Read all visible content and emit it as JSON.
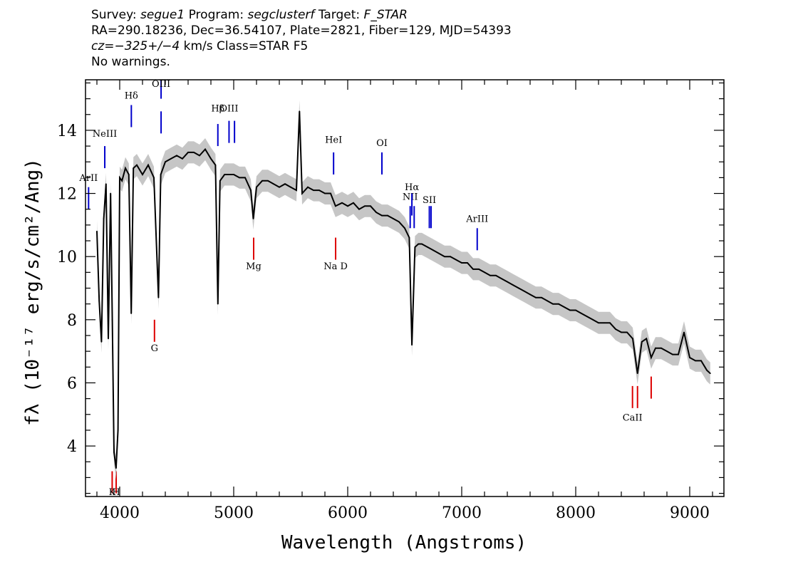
{
  "header": {
    "survey_label": "Survey:",
    "survey": "segue1",
    "program_label": "Program:",
    "program": "segclusterf",
    "target_label": "Target:",
    "target": "F_STAR",
    "line2": "RA=290.18236, Dec=36.54107, Plate=2821, Fiber=129, MJD=54393",
    "cz_label": "cz=",
    "cz_value": "−325+/−4",
    "cz_rest": " km/s Class=STAR F5",
    "warnings": "No warnings."
  },
  "chart_data": {
    "type": "line",
    "title": "",
    "xlabel": "Wavelength (Angstroms)",
    "ylabel": "fλ (10⁻¹⁷ erg/s/cm²/Ang)",
    "xlim": [
      3700,
      9300
    ],
    "ylim": [
      2.4,
      15.6
    ],
    "xticks": [
      4000,
      5000,
      6000,
      7000,
      8000,
      9000
    ],
    "yticks": [
      4,
      6,
      8,
      10,
      12,
      14
    ],
    "grid": false,
    "series": [
      {
        "color": "#000000",
        "error_band_color": "#c0c0c0",
        "x": [
          3800,
          3820,
          3840,
          3860,
          3880,
          3900,
          3920,
          3935,
          3950,
          3968,
          3985,
          4000,
          4020,
          4050,
          4080,
          4101,
          4120,
          4150,
          4200,
          4250,
          4300,
          4340,
          4360,
          4400,
          4450,
          4500,
          4550,
          4600,
          4650,
          4700,
          4750,
          4800,
          4840,
          4861,
          4880,
          4920,
          4950,
          5000,
          5050,
          5100,
          5150,
          5172,
          5200,
          5250,
          5300,
          5350,
          5400,
          5450,
          5500,
          5550,
          5577,
          5600,
          5650,
          5700,
          5750,
          5800,
          5850,
          5893,
          5950,
          6000,
          6050,
          6100,
          6150,
          6200,
          6250,
          6300,
          6350,
          6400,
          6450,
          6500,
          6540,
          6563,
          6590,
          6620,
          6650,
          6700,
          6750,
          6800,
          6850,
          6900,
          6950,
          7000,
          7050,
          7100,
          7150,
          7200,
          7250,
          7300,
          7350,
          7400,
          7450,
          7500,
          7550,
          7600,
          7650,
          7700,
          7750,
          7800,
          7850,
          7900,
          7950,
          8000,
          8050,
          8100,
          8150,
          8200,
          8250,
          8300,
          8350,
          8400,
          8450,
          8500,
          8542,
          8580,
          8620,
          8662,
          8700,
          8750,
          8800,
          8850,
          8900,
          8950,
          9000,
          9050,
          9100,
          9150,
          9180
        ],
        "y": [
          10.8,
          8.6,
          7.3,
          11.2,
          12.3,
          7.4,
          12.0,
          8.0,
          3.8,
          3.3,
          4.5,
          12.5,
          12.4,
          12.8,
          12.6,
          8.2,
          12.8,
          12.9,
          12.6,
          12.9,
          12.5,
          8.7,
          12.6,
          13.0,
          13.1,
          13.2,
          13.1,
          13.3,
          13.3,
          13.2,
          13.4,
          13.1,
          12.9,
          8.5,
          12.4,
          12.6,
          12.6,
          12.6,
          12.5,
          12.5,
          12.1,
          11.2,
          12.2,
          12.4,
          12.4,
          12.3,
          12.2,
          12.3,
          12.2,
          12.1,
          14.6,
          12.0,
          12.2,
          12.1,
          12.1,
          12.0,
          12.0,
          11.6,
          11.7,
          11.6,
          11.7,
          11.5,
          11.6,
          11.6,
          11.4,
          11.3,
          11.3,
          11.2,
          11.1,
          10.9,
          10.6,
          7.2,
          10.3,
          10.4,
          10.4,
          10.3,
          10.2,
          10.1,
          10.0,
          10.0,
          9.9,
          9.8,
          9.8,
          9.6,
          9.6,
          9.5,
          9.4,
          9.4,
          9.3,
          9.2,
          9.1,
          9.0,
          8.9,
          8.8,
          8.7,
          8.7,
          8.6,
          8.5,
          8.5,
          8.4,
          8.3,
          8.3,
          8.2,
          8.1,
          8.0,
          7.9,
          7.9,
          7.9,
          7.7,
          7.6,
          7.6,
          7.4,
          6.3,
          7.3,
          7.4,
          6.8,
          7.1,
          7.1,
          7.0,
          6.9,
          6.9,
          7.6,
          6.8,
          6.7,
          6.7,
          6.4,
          6.3
        ]
      }
    ],
    "emission_lines": [
      {
        "label": "ArII",
        "x": 3727,
        "y_low": 11.5,
        "y_high": 12.2,
        "color": "#0000cc",
        "label_y": 12.4
      },
      {
        "label": "NeIII",
        "x": 3869,
        "y_low": 12.8,
        "y_high": 13.5,
        "color": "#0000cc",
        "label_y": 13.8
      },
      {
        "label": "Hδ",
        "x": 4102,
        "y_low": 14.1,
        "y_high": 14.8,
        "color": "#0000cc",
        "label_y": 15.0
      },
      {
        "label": "OIII",
        "x": 4363,
        "y_low": 15.0,
        "y_high": 15.7,
        "color": "#0000cc",
        "label_y": 15.4
      },
      {
        "label": "OIII",
        "x": 4363,
        "y_low": 13.9,
        "y_high": 14.6,
        "color": "#0000cc",
        "label_y": null
      },
      {
        "label": "Hβ",
        "x": 4861,
        "y_low": 13.5,
        "y_high": 14.2,
        "color": "#0000cc",
        "label_y": 14.6
      },
      {
        "label": "OIII",
        "x": 4959,
        "y_low": 13.6,
        "y_high": 14.3,
        "color": "#0000cc",
        "label_y": 14.6
      },
      {
        "label": "",
        "x": 5007,
        "y_low": 13.6,
        "y_high": 14.3,
        "color": "#0000cc",
        "label_y": null
      },
      {
        "label": "HeI",
        "x": 5876,
        "y_low": 12.6,
        "y_high": 13.3,
        "color": "#0000cc",
        "label_y": 13.6
      },
      {
        "label": "OI",
        "x": 6300,
        "y_low": 12.6,
        "y_high": 13.3,
        "color": "#0000cc",
        "label_y": 13.5
      },
      {
        "label": "NII",
        "x": 6548,
        "y_low": 10.9,
        "y_high": 11.6,
        "color": "#0000cc",
        "label_y": 11.8
      },
      {
        "label": "Hα",
        "x": 6563,
        "y_low": 11.3,
        "y_high": 12.0,
        "color": "#0000cc",
        "label_y": 12.1
      },
      {
        "label": "",
        "x": 6583,
        "y_low": 10.9,
        "y_high": 11.6,
        "color": "#0000cc",
        "label_y": null
      },
      {
        "label": "SII",
        "x": 6716,
        "y_low": 10.9,
        "y_high": 11.6,
        "color": "#0000cc",
        "label_y": 11.7
      },
      {
        "label": "SII",
        "x": 6731,
        "y_low": 10.9,
        "y_high": 11.6,
        "color": "#0000cc",
        "label_y": null
      },
      {
        "label": "ArIII",
        "x": 7136,
        "y_low": 10.2,
        "y_high": 10.9,
        "color": "#0000cc",
        "label_y": 11.1
      }
    ],
    "absorption_lines": [
      {
        "label": "K",
        "x": 3934,
        "y_low": 2.5,
        "y_high": 3.2,
        "color": "#dd0000",
        "label_y": 2.3
      },
      {
        "label": "H",
        "x": 3969,
        "y_low": 2.5,
        "y_high": 3.2,
        "color": "#dd0000",
        "label_y": 2.3
      },
      {
        "label": "G",
        "x": 4305,
        "y_low": 7.3,
        "y_high": 8.0,
        "color": "#dd0000",
        "label_y": 7.0
      },
      {
        "label": "Mg",
        "x": 5175,
        "y_low": 9.9,
        "y_high": 10.6,
        "color": "#dd0000",
        "label_y": 9.6
      },
      {
        "label": "Na D",
        "x": 5894,
        "y_low": 9.9,
        "y_high": 10.6,
        "color": "#dd0000",
        "label_y": 9.6
      },
      {
        "label": "CaII",
        "x": 8498,
        "y_low": 5.2,
        "y_high": 5.9,
        "color": "#dd0000",
        "label_y": 4.8
      },
      {
        "label": "",
        "x": 8542,
        "y_low": 5.2,
        "y_high": 5.9,
        "color": "#dd0000",
        "label_y": null
      },
      {
        "label": "",
        "x": 8662,
        "y_low": 5.5,
        "y_high": 6.2,
        "color": "#dd0000",
        "label_y": null
      }
    ]
  }
}
